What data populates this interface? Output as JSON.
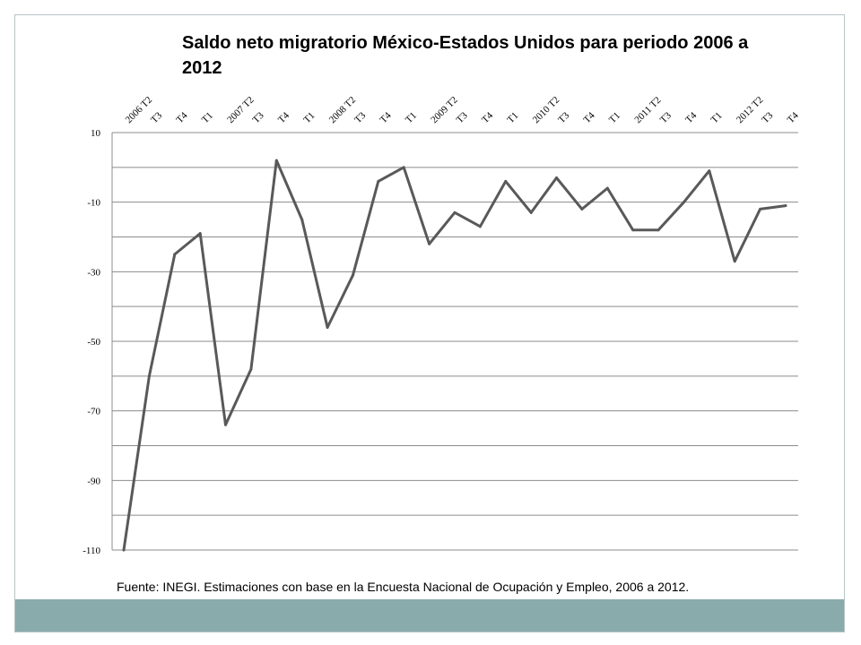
{
  "title": "Saldo neto migratorio México-Estados Unidos para periodo 2006 a 2012",
  "source": "Fuente: INEGI. Estimaciones con base en la Encuesta Nacional de Ocupación y Empleo, 2006 a 2012.",
  "colors": {
    "line": "#595959",
    "grid": "#8c8c8c",
    "footer": "#8aabab",
    "frame": "#b7c4c4"
  },
  "chart_data": {
    "type": "line",
    "title": "Saldo neto migratorio México-Estados Unidos para periodo 2006 a 2012",
    "xlabel": "",
    "ylabel": "",
    "ylim": [
      -110,
      10
    ],
    "yticks": [
      10,
      -10,
      -30,
      -50,
      -70,
      -90,
      -110
    ],
    "grid": true,
    "categories": [
      "2006 T2",
      "T3",
      "T4",
      "T1",
      "2007 T2",
      "T3",
      "T4",
      "T1",
      "2008 T2",
      "T3",
      "T4",
      "T1",
      "2009 T2",
      "T3",
      "T4",
      "T1",
      "2010 T2",
      "T3",
      "T4",
      "T1",
      "2011 T2",
      "T3",
      "T4",
      "T1",
      "2012 T2",
      "T3",
      "T4"
    ],
    "series": [
      {
        "values": [
          -110,
          -60,
          -25,
          -19,
          -74,
          -58,
          2,
          -15,
          -46,
          -31,
          -4,
          0,
          -22,
          -13,
          -17,
          -4,
          -13,
          -3,
          -12,
          -6,
          -18,
          -18,
          -10,
          -1,
          -27,
          -12,
          -11
        ]
      }
    ]
  }
}
